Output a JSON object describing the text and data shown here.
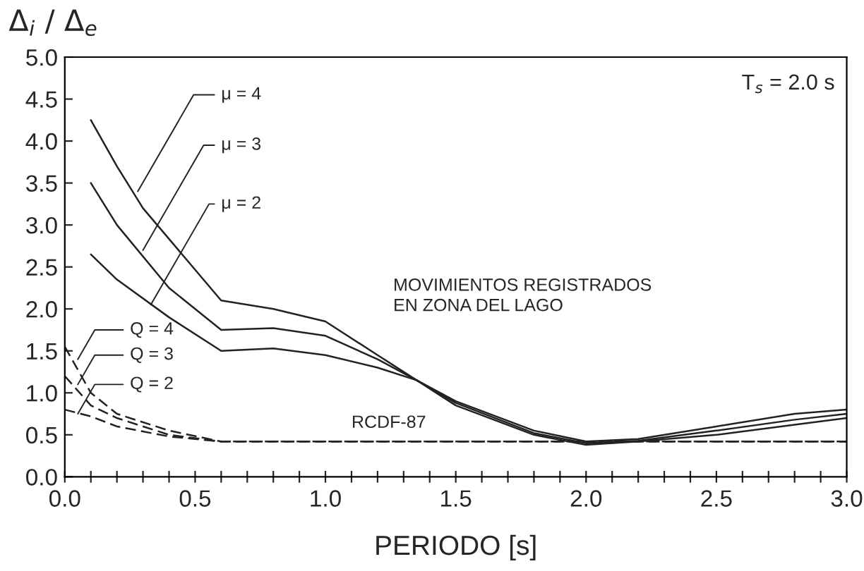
{
  "chart_data": {
    "type": "line",
    "ylabel": "Δ$_{i}$ / Δ$_{e}$",
    "xlabel": "PERIODO [s]",
    "xlim": [
      0,
      3.0
    ],
    "ylim": [
      0,
      5.0
    ],
    "xticks": [
      {
        "value": 0,
        "label": "0.0"
      },
      {
        "value": 0.1,
        "label": null
      },
      {
        "value": 0.2,
        "label": null
      },
      {
        "value": 0.3,
        "label": null
      },
      {
        "value": 0.4,
        "label": null
      },
      {
        "value": 0.5,
        "label": "0.5"
      },
      {
        "value": 0.6,
        "label": null
      },
      {
        "value": 0.7,
        "label": null
      },
      {
        "value": 0.8,
        "label": null
      },
      {
        "value": 0.9,
        "label": null
      },
      {
        "value": 1.0,
        "label": "1.0"
      },
      {
        "value": 1.1,
        "label": null
      },
      {
        "value": 1.2,
        "label": null
      },
      {
        "value": 1.3,
        "label": null
      },
      {
        "value": 1.4,
        "label": null
      },
      {
        "value": 1.5,
        "label": "1.5"
      },
      {
        "value": 1.6,
        "label": null
      },
      {
        "value": 1.7,
        "label": null
      },
      {
        "value": 1.8,
        "label": null
      },
      {
        "value": 1.9,
        "label": null
      },
      {
        "value": 2.0,
        "label": "2.0"
      },
      {
        "value": 2.1,
        "label": null
      },
      {
        "value": 2.2,
        "label": null
      },
      {
        "value": 2.3,
        "label": null
      },
      {
        "value": 2.4,
        "label": null
      },
      {
        "value": 2.5,
        "label": "2.5"
      },
      {
        "value": 2.6,
        "label": null
      },
      {
        "value": 2.7,
        "label": null
      },
      {
        "value": 2.8,
        "label": null
      },
      {
        "value": 2.9,
        "label": null
      },
      {
        "value": 3.0,
        "label": "3.0"
      }
    ],
    "yticks": [
      {
        "value": 0,
        "label": "0.0"
      },
      {
        "value": 0.5,
        "label": "0.5"
      },
      {
        "value": 1.0,
        "label": "1.0"
      },
      {
        "value": 1.5,
        "label": "1.5"
      },
      {
        "value": 2.0,
        "label": "2.0"
      },
      {
        "value": 2.5,
        "label": "2.5"
      },
      {
        "value": 3.0,
        "label": "3.0"
      },
      {
        "value": 3.5,
        "label": "3.5"
      },
      {
        "value": 4.0,
        "label": "4.0"
      },
      {
        "value": 4.5,
        "label": "4.5"
      },
      {
        "value": 5.0,
        "label": "5.0"
      }
    ],
    "grid": false,
    "series": [
      {
        "color": "#222222",
        "line_style": "solid",
        "x": [
          0.1,
          0.2,
          0.3,
          0.6,
          0.8,
          1.0,
          1.2,
          1.35,
          1.5,
          1.8,
          2.0,
          2.2,
          2.5,
          2.8,
          3.0
        ],
        "values": [
          4.25,
          3.7,
          3.2,
          2.1,
          2.0,
          1.85,
          1.45,
          1.15,
          0.9,
          0.55,
          0.42,
          0.45,
          0.6,
          0.75,
          0.8
        ]
      },
      {
        "color": "#222222",
        "line_style": "solid",
        "x": [
          0.1,
          0.2,
          0.4,
          0.6,
          0.8,
          1.0,
          1.2,
          1.35,
          1.5,
          1.8,
          2.0,
          2.2,
          2.5,
          2.8,
          3.0
        ],
        "values": [
          3.5,
          3.0,
          2.25,
          1.75,
          1.77,
          1.68,
          1.4,
          1.15,
          0.88,
          0.52,
          0.4,
          0.43,
          0.55,
          0.68,
          0.75
        ]
      },
      {
        "color": "#222222",
        "line_style": "solid",
        "x": [
          0.1,
          0.2,
          0.4,
          0.6,
          0.8,
          1.0,
          1.2,
          1.35,
          1.5,
          1.8,
          2.0,
          2.2,
          2.5,
          2.8,
          3.0
        ],
        "values": [
          2.65,
          2.35,
          1.9,
          1.5,
          1.53,
          1.45,
          1.3,
          1.15,
          0.85,
          0.5,
          0.38,
          0.42,
          0.5,
          0.62,
          0.7
        ]
      },
      {
        "color": "#222222",
        "line_style": "dashed",
        "x": [
          0.0,
          0.1,
          0.2,
          0.4,
          0.6,
          3.0
        ],
        "values": [
          1.55,
          1.0,
          0.75,
          0.55,
          0.42,
          0.42
        ]
      },
      {
        "color": "#222222",
        "line_style": "dashed",
        "x": [
          0.0,
          0.1,
          0.2,
          0.4,
          0.6,
          3.0
        ],
        "values": [
          1.2,
          0.85,
          0.7,
          0.5,
          0.42,
          0.42
        ]
      },
      {
        "color": "#222222",
        "line_style": "dashed",
        "x": [
          0.0,
          0.1,
          0.2,
          0.4,
          0.6,
          3.0
        ],
        "values": [
          0.8,
          0.72,
          0.6,
          0.48,
          0.42,
          0.42
        ]
      }
    ],
    "annotations": [
      {
        "text": "μ = 4",
        "x": 0.28,
        "y": 3.4
      },
      {
        "text": "μ = 3",
        "x": 0.3,
        "y": 2.7
      },
      {
        "text": "μ = 2",
        "x": 0.33,
        "y": 2.05
      },
      {
        "text": "Q = 4",
        "x": 0.05,
        "y": 1.4
      },
      {
        "text": "Q = 3",
        "x": 0.05,
        "y": 1.1
      },
      {
        "text": "Q = 2",
        "x": 0.05,
        "y": 0.75
      },
      {
        "text": "RCDF-87",
        "x": 1.1,
        "y": 0.42
      },
      "MOVIMIENTOS REGISTRADOS\nEN ZONA DEL LAGO",
      "T$_{s}$ = 2.0 s"
    ]
  }
}
